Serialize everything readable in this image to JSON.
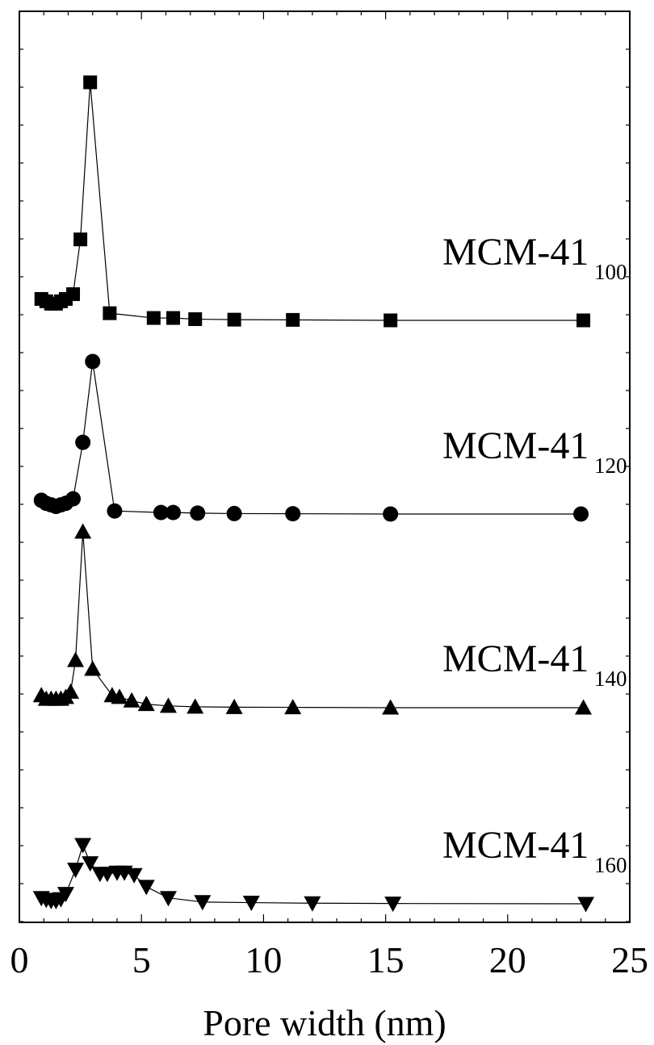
{
  "chart_data": {
    "type": "line",
    "xlabel": "Pore width (nm)",
    "ylabel": "",
    "xlim": [
      0,
      25
    ],
    "xticks": [
      0,
      5,
      10,
      15,
      20,
      25
    ],
    "yticks_labeled": false,
    "grid": false,
    "series": [
      {
        "name": "MCM-41",
        "subscript": "100",
        "marker": "square",
        "points": [
          [
            0.9,
            0.09
          ],
          [
            1.1,
            0.08
          ],
          [
            1.3,
            0.07
          ],
          [
            1.5,
            0.07
          ],
          [
            1.7,
            0.08
          ],
          [
            1.9,
            0.09
          ],
          [
            2.2,
            0.11
          ],
          [
            2.5,
            0.34
          ],
          [
            2.9,
            1.0
          ],
          [
            3.7,
            0.03
          ],
          [
            5.5,
            0.01
          ],
          [
            6.3,
            0.01
          ],
          [
            7.2,
            0.005
          ],
          [
            8.8,
            0.003
          ],
          [
            11.2,
            0.002
          ],
          [
            15.2,
            0.0
          ],
          [
            23.1,
            0.0
          ]
        ]
      },
      {
        "name": "MCM-41",
        "subscript": "120",
        "marker": "circle",
        "points": [
          [
            0.9,
            0.09
          ],
          [
            1.1,
            0.07
          ],
          [
            1.3,
            0.06
          ],
          [
            1.5,
            0.05
          ],
          [
            1.7,
            0.06
          ],
          [
            1.9,
            0.07
          ],
          [
            2.2,
            0.1
          ],
          [
            2.6,
            0.47
          ],
          [
            3.0,
            1.0
          ],
          [
            3.9,
            0.02
          ],
          [
            5.8,
            0.01
          ],
          [
            6.3,
            0.01
          ],
          [
            7.3,
            0.006
          ],
          [
            8.8,
            0.003
          ],
          [
            11.2,
            0.002
          ],
          [
            15.2,
            0.0
          ],
          [
            23.0,
            0.0
          ]
        ]
      },
      {
        "name": "MCM-41",
        "subscript": "140",
        "marker": "triangle-up",
        "points": [
          [
            0.9,
            0.07
          ],
          [
            1.1,
            0.05
          ],
          [
            1.3,
            0.05
          ],
          [
            1.5,
            0.05
          ],
          [
            1.7,
            0.05
          ],
          [
            1.9,
            0.06
          ],
          [
            2.1,
            0.09
          ],
          [
            2.3,
            0.27
          ],
          [
            2.6,
            1.0
          ],
          [
            3.0,
            0.22
          ],
          [
            3.8,
            0.07
          ],
          [
            4.1,
            0.06
          ],
          [
            4.6,
            0.04
          ],
          [
            5.2,
            0.02
          ],
          [
            6.1,
            0.01
          ],
          [
            7.2,
            0.005
          ],
          [
            8.8,
            0.003
          ],
          [
            11.2,
            0.002
          ],
          [
            15.2,
            0.0
          ],
          [
            23.1,
            0.0
          ]
        ]
      },
      {
        "name": "MCM-41",
        "subscript": "160",
        "marker": "triangle-down",
        "points": [
          [
            0.9,
            0.1
          ],
          [
            1.1,
            0.07
          ],
          [
            1.3,
            0.05
          ],
          [
            1.5,
            0.05
          ],
          [
            1.7,
            0.08
          ],
          [
            1.9,
            0.17
          ],
          [
            2.3,
            0.58
          ],
          [
            2.6,
            1.0
          ],
          [
            2.9,
            0.69
          ],
          [
            3.3,
            0.51
          ],
          [
            3.6,
            0.51
          ],
          [
            4.0,
            0.53
          ],
          [
            4.3,
            0.53
          ],
          [
            4.7,
            0.49
          ],
          [
            5.2,
            0.29
          ],
          [
            6.1,
            0.1
          ],
          [
            7.5,
            0.03
          ],
          [
            9.5,
            0.02
          ],
          [
            12.0,
            0.01
          ],
          [
            15.3,
            0.005
          ],
          [
            23.2,
            0.0
          ]
        ]
      }
    ]
  }
}
